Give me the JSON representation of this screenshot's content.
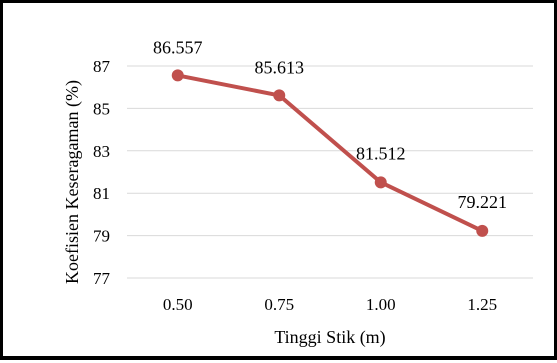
{
  "chart_data": {
    "type": "line",
    "title": "",
    "xlabel": "Tinggi Stik (m)",
    "ylabel": "Koefisien Keseragaman (%)",
    "categories": [
      "0.50",
      "0.75",
      "1.00",
      "1.25"
    ],
    "series": [
      {
        "values": [
          86.557,
          85.613,
          81.512,
          79.221
        ],
        "labels": [
          "86.557",
          "85.613",
          "81.512",
          "79.221"
        ],
        "color": "#c0504d"
      }
    ],
    "ylim": [
      77,
      87
    ],
    "yticks": [
      "77",
      "79",
      "81",
      "83",
      "85",
      "87"
    ],
    "grid": true,
    "legend": "none"
  }
}
